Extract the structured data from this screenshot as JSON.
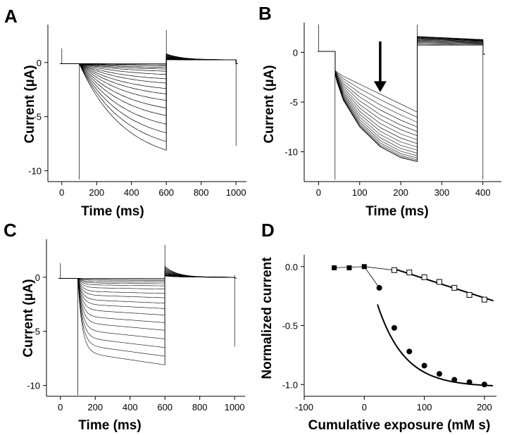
{
  "chart_data": [
    {
      "panel": "A",
      "type": "line",
      "title": "",
      "xlabel": "Time (ms)",
      "ylabel": "Current (µA)",
      "xlim": [
        -80,
        1060
      ],
      "ylim": [
        -11,
        3.5
      ],
      "xticks": [
        0,
        200,
        400,
        600,
        800,
        1000
      ],
      "yticks": [
        0,
        -5,
        -10
      ],
      "ytick_labels": [
        "0",
        "-5",
        "-10"
      ],
      "protocol": {
        "hold": -0.1,
        "pulse_on": 100,
        "pulse_off": 600,
        "end": 1000,
        "tail_peak": 0.8,
        "tail_end": 0.25,
        "on_spike": 1.3,
        "off_spike": 3.0,
        "end_spike": -7.7,
        "start_spike": -10.8
      },
      "series": [
        {
          "values": [
            -0.1,
            -0.2,
            -0.3,
            -0.45,
            -0.6,
            -0.8,
            -1.1,
            -1.5,
            -1.9,
            -2.4,
            -2.9,
            -3.5,
            -4.2,
            -4.9,
            -5.7,
            -6.5,
            -7.3,
            -8.1
          ]
        }
      ],
      "family_note": "nested sweeps sampled at t = 100, 110, 130, 150, 200, 300, 400, 500, 600 ms",
      "sweeps": [
        [
          -0.1,
          -0.15,
          -0.2,
          -0.3,
          -0.45,
          -0.6,
          -0.7,
          -0.8,
          -0.9
        ],
        [
          -0.1,
          -0.25,
          -0.35,
          -0.5,
          -0.7,
          -0.95,
          -1.2,
          -1.4,
          -1.6
        ],
        [
          -0.1,
          -0.35,
          -0.55,
          -0.8,
          -1.1,
          -1.5,
          -1.9,
          -2.2,
          -2.4
        ],
        [
          -0.1,
          -0.5,
          -0.8,
          -1.1,
          -1.5,
          -2.1,
          -2.6,
          -3.0,
          -3.3
        ],
        [
          -0.1,
          -0.65,
          -1.0,
          -1.4,
          -1.9,
          -2.7,
          -3.3,
          -3.8,
          -4.2
        ],
        [
          -0.1,
          -0.8,
          -1.25,
          -1.7,
          -2.3,
          -3.3,
          -4.0,
          -4.6,
          -5.0
        ],
        [
          -0.1,
          -0.95,
          -1.5,
          -2.0,
          -2.7,
          -3.9,
          -4.7,
          -5.3,
          -5.8
        ],
        [
          -0.1,
          -1.1,
          -1.75,
          -2.3,
          -3.1,
          -4.4,
          -5.3,
          -6.0,
          -6.5
        ],
        [
          -0.1,
          -1.25,
          -2.0,
          -2.6,
          -3.5,
          -4.9,
          -5.9,
          -6.6,
          -7.2
        ],
        [
          -0.1,
          -1.4,
          -2.2,
          -2.9,
          -3.9,
          -5.4,
          -6.5,
          -7.3,
          -8.0
        ]
      ]
    },
    {
      "panel": "B",
      "type": "line",
      "title": "",
      "xlabel": "Time (ms)",
      "ylabel": "Current (µA)",
      "xlim": [
        -35,
        445
      ],
      "ylim": [
        -13,
        3
      ],
      "xticks": [
        0,
        100,
        200,
        300,
        400
      ],
      "yticks": [
        0,
        -5,
        -10
      ],
      "ytick_labels": [
        "0",
        "-5",
        "-10"
      ],
      "family_note": "sweeps sampled at t = 40, 45, 60, 100, 150, 200, 240 ms",
      "sweeps_top": [
        -1.8,
        -2.0,
        -2.4,
        -3.2,
        -4.2,
        -5.2,
        -6.0
      ],
      "sweeps_bottom": [
        -2.2,
        -3.0,
        -4.8,
        -7.5,
        -9.5,
        -10.6,
        -11.0
      ],
      "sweep_count": 16,
      "tail_top": 1.6,
      "tail_bottom": 0.7,
      "arrow_at": 150
    },
    {
      "panel": "C",
      "type": "line",
      "title": "",
      "xlabel": "Time (ms)",
      "ylabel": "Current (µA)",
      "xlim": [
        -80,
        1060
      ],
      "ylim": [
        -11,
        3.5
      ],
      "xticks": [
        0,
        200,
        400,
        600,
        800,
        1000
      ],
      "yticks": [
        0,
        -5,
        -10
      ],
      "ytick_labels": [
        "0",
        "-5",
        "-10"
      ],
      "steady_levels": [
        -0.1,
        -0.2,
        -0.3,
        -0.45,
        -0.6,
        -0.8,
        -1.1,
        -1.5,
        -1.9,
        -2.4,
        -2.9,
        -3.5,
        -4.2,
        -4.9,
        -5.7,
        -6.5,
        -7.3,
        -8.1
      ],
      "rise_tau_ms": 25
    },
    {
      "panel": "D",
      "type": "scatter",
      "title": "",
      "xlabel": "Cumulative exposure (mM s)",
      "ylabel": "Normalized current",
      "xlim": [
        -100,
        220
      ],
      "ylim": [
        -1.1,
        0.1
      ],
      "xticks": [
        -100,
        0,
        100,
        200
      ],
      "yticks": [
        0.0,
        -0.5,
        -1.0
      ],
      "ytick_labels": [
        "0.0",
        "-0.5",
        "-1.0"
      ],
      "series": [
        {
          "marker": "filled-circle",
          "x": [
            25,
            50,
            75,
            100,
            125,
            150,
            175,
            200
          ],
          "y": [
            -0.18,
            -0.52,
            -0.72,
            -0.84,
            -0.91,
            -0.96,
            -0.98,
            -1.0
          ]
        },
        {
          "marker": "open-square",
          "x": [
            50,
            75,
            100,
            125,
            150,
            175,
            200
          ],
          "y": [
            -0.03,
            -0.05,
            -0.09,
            -0.13,
            -0.18,
            -0.24,
            -0.28
          ]
        },
        {
          "marker": "filled-square",
          "x": [
            -50,
            -25,
            0
          ],
          "y": [
            -0.01,
            -0.01,
            0.0
          ]
        }
      ],
      "fit_filled": {
        "x0": 5,
        "tau": 45,
        "amp": -1.02
      },
      "fit_open": {
        "x": [
          50,
          215
        ],
        "y": [
          -0.02,
          -0.29
        ]
      }
    }
  ]
}
